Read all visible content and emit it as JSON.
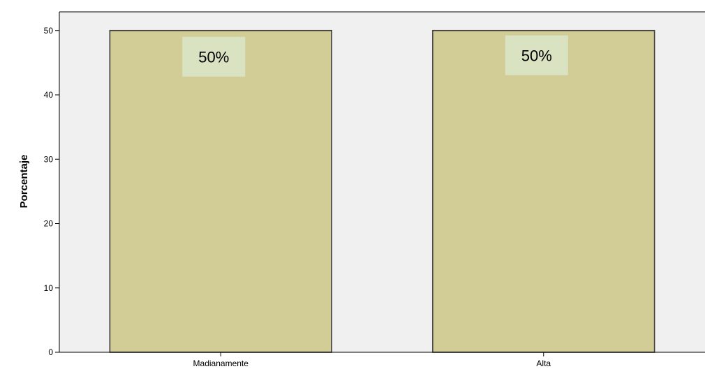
{
  "chart_data": {
    "type": "bar",
    "categories": [
      "Madianamente",
      "Alta"
    ],
    "values": [
      50,
      50
    ],
    "data_labels": [
      "50%",
      "50%"
    ],
    "xlabel": "",
    "ylabel": "Porcentaje",
    "ylim": [
      0,
      52.9
    ],
    "yticks": [
      0,
      10,
      20,
      30,
      40,
      50
    ],
    "grid": false,
    "colors": {
      "bar_fill": "#d2cc96",
      "bar_stroke": "#3a3a3a",
      "plot_background": "#f0f0f0",
      "label_box": "#d9e3c2"
    }
  }
}
